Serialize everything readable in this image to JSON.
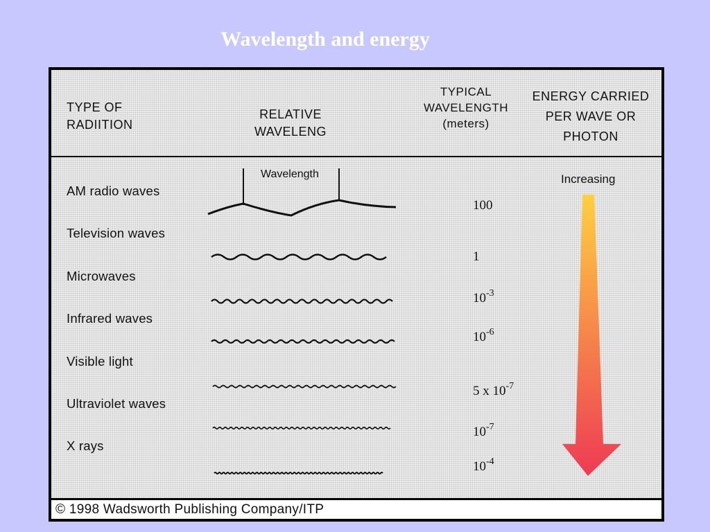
{
  "title": "Wavelength and energy",
  "headers": {
    "type": "TYPE OF\nRADIITION",
    "relative": "RELATIVE\nWAVELENG",
    "typical": "TYPICAL\nWAVELENGTH\n(meters)",
    "energy": "ENERGY CARRIED\nPER WAVE OR\nPHOTON"
  },
  "wavelength_label": "Wavelength",
  "increasing_label": "Increasing",
  "rows": [
    {
      "label": "AM radio waves"
    },
    {
      "label": "Television waves"
    },
    {
      "label": "Microwaves"
    },
    {
      "label": "Infrared waves"
    },
    {
      "label": "Visible light"
    },
    {
      "label": "Ultraviolet waves"
    },
    {
      "label": "X rays"
    }
  ],
  "wavelengths": [
    {
      "base": "100",
      "exp": ""
    },
    {
      "base": "1",
      "exp": ""
    },
    {
      "base": "10",
      "exp": "-3"
    },
    {
      "base": "10",
      "exp": "-6"
    },
    {
      "base": "5 x 10",
      "exp": "-7"
    },
    {
      "base": "10",
      "exp": "-7"
    },
    {
      "base": "10",
      "exp": "-4"
    }
  ],
  "arrow_colors": {
    "top": "#ffd040",
    "bottom": "#ee3a55"
  },
  "footer": "© 1998 Wadsworth Publishing Company/ITP"
}
